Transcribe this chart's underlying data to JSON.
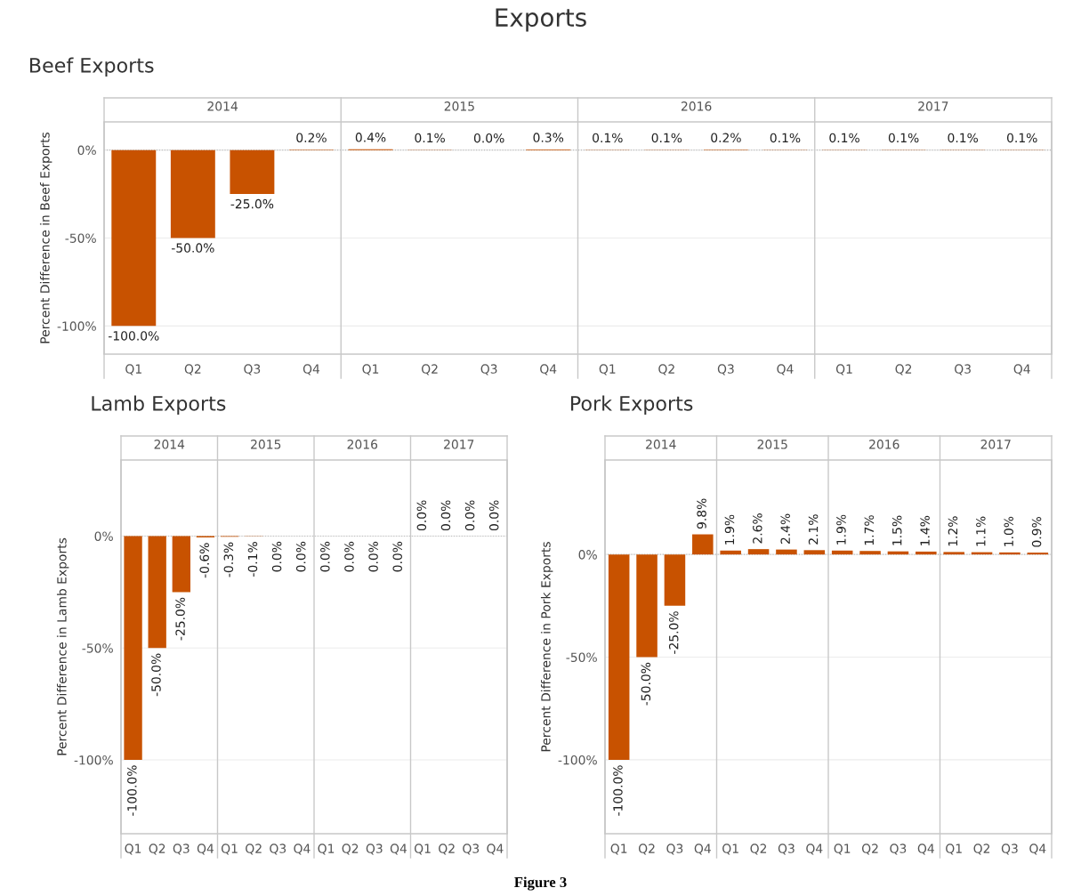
{
  "chart_data": [
    {
      "type": "other",
      "title": "Exports",
      "annotations": [
        "Figure 3"
      ]
    },
    {
      "type": "bar",
      "title": "Beef Exports",
      "ylabel": "Percent Difference in Beef Exports",
      "categories": [
        "Q1",
        "Q2",
        "Q3",
        "Q4",
        "Q1",
        "Q2",
        "Q3",
        "Q4",
        "Q1",
        "Q2",
        "Q3",
        "Q4",
        "Q1",
        "Q2",
        "Q3",
        "Q4"
      ],
      "color": "#c85200",
      "values": [
        -100,
        -50,
        -25,
        0.2,
        0.4,
        0.1,
        0.0,
        0.3,
        0.1,
        0.1,
        0.2,
        0.1,
        0.1,
        0.1,
        0.1,
        0.1
      ],
      "value_labels": [
        "-100.0%",
        "-50.0%",
        "-25.0%",
        "0.2%",
        "0.4%",
        "0.1%",
        "0.0%",
        "0.3%",
        "0.1%",
        "0.1%",
        "0.2%",
        "0.1%",
        "0.1%",
        "0.1%",
        "0.1%",
        "0.1%"
      ],
      "ylim": [
        -116,
        16
      ],
      "yticks": [
        {
          "value": -100,
          "label": "-100%"
        },
        {
          "value": -50,
          "label": "-50%"
        },
        {
          "value": 0,
          "label": "0%"
        }
      ],
      "grid": "y",
      "ref_lines": [
        {
          "axis": "y",
          "value": 0,
          "line_style": "dotted",
          "color": "#bbbbbb"
        }
      ],
      "x2lim": [
        2013.5,
        2017.5
      ],
      "x2ticks": [
        2014,
        2015,
        2016,
        2017
      ]
    },
    {
      "type": "bar",
      "title": "Lamb Exports",
      "ylabel": "Percent Difference in Lamb Exports",
      "categories": [
        "Q1",
        "Q2",
        "Q3",
        "Q4",
        "Q1",
        "Q2",
        "Q3",
        "Q4",
        "Q1",
        "Q2",
        "Q3",
        "Q4",
        "Q1",
        "Q2",
        "Q3",
        "Q4"
      ],
      "color": "#c85200",
      "values": [
        -100,
        -50,
        -25,
        -0.6,
        -0.3,
        -0.1,
        -0.0,
        -0.0,
        -0.0,
        -0.0,
        -0.0,
        -0.0,
        0.0,
        0.0,
        0.0,
        0.0
      ],
      "value_labels": [
        "-100.0%",
        "-50.0%",
        "-25.0%",
        "-0.6%",
        "-0.3%",
        "-0.1%",
        "0.0%",
        "0.0%",
        "0.0%",
        "0.0%",
        "0.0%",
        "0.0%",
        "0.0%",
        "0.0%",
        "0.0%",
        "0.0%"
      ],
      "ylim": [
        -133,
        34
      ],
      "yticks": [
        {
          "value": -100,
          "label": "-100%"
        },
        {
          "value": -50,
          "label": "-50%"
        },
        {
          "value": 0,
          "label": "0%"
        }
      ],
      "grid": "y",
      "ref_lines": [
        {
          "axis": "y",
          "value": 0,
          "line_style": "dotted",
          "color": "#bbbbbb"
        }
      ],
      "x2lim": [
        2013.5,
        2017.5
      ],
      "x2ticks": [
        2014,
        2015,
        2016,
        2017
      ]
    },
    {
      "type": "bar",
      "title": "Pork Exports",
      "ylabel": "Percent Difference in Pork Exports",
      "categories": [
        "Q1",
        "Q2",
        "Q3",
        "Q4",
        "Q1",
        "Q2",
        "Q3",
        "Q4",
        "Q1",
        "Q2",
        "Q3",
        "Q4",
        "Q1",
        "Q2",
        "Q3",
        "Q4"
      ],
      "color": "#c85200",
      "values": [
        -100,
        -50,
        -25,
        9.8,
        1.9,
        2.6,
        2.4,
        2.1,
        1.9,
        1.7,
        1.5,
        1.4,
        1.2,
        1.1,
        1.0,
        0.9
      ],
      "value_labels": [
        "-100.0%",
        "-50.0%",
        "-25.0%",
        "9.8%",
        "1.9%",
        "2.6%",
        "2.4%",
        "2.1%",
        "1.9%",
        "1.7%",
        "1.5%",
        "1.4%",
        "1.2%",
        "1.1%",
        "1.0%",
        "0.9%"
      ],
      "ylim": [
        -136,
        46
      ],
      "yticks": [
        {
          "value": -100,
          "label": "-100%"
        },
        {
          "value": -50,
          "label": "-50%"
        },
        {
          "value": 0,
          "label": "0%"
        }
      ],
      "grid": "y",
      "ref_lines": [
        {
          "axis": "y",
          "value": 0,
          "line_style": "dotted",
          "color": "#bbbbbb"
        }
      ],
      "x2lim": [
        2013.5,
        2017.5
      ],
      "x2ticks": [
        2014,
        2015,
        2016,
        2017
      ]
    }
  ]
}
